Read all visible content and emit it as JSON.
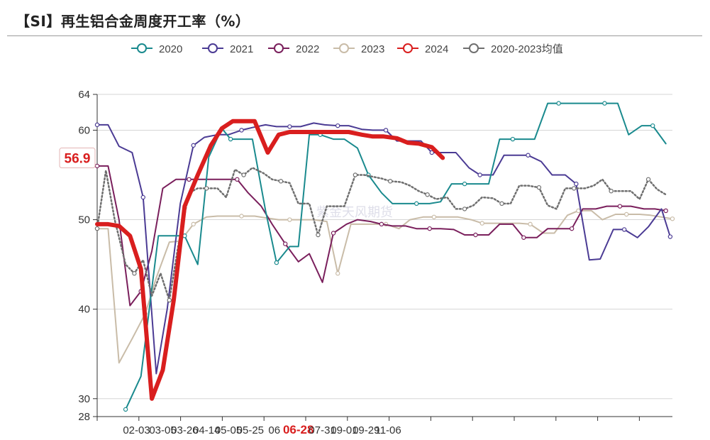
{
  "title": "【SI】再生铝合金周度开工率（%）",
  "watermark": "紫金天风期货",
  "chart_data": {
    "type": "line",
    "title": "【SI】再生铝合金周度开工率（%）",
    "xlabel": "",
    "ylabel": "",
    "ylim": [
      28,
      64
    ],
    "y_ticks": [
      28,
      30,
      40,
      50,
      60,
      64
    ],
    "x_tick_labels": [
      "02-03",
      "03-05",
      "03-26",
      "04-14",
      "05-05",
      "05-25",
      "06",
      "06-28",
      "07-31",
      "09-01",
      "09-29",
      "11-06"
    ],
    "highlight_x_label": "06-28",
    "current_value_label": "56.9",
    "legend_position": "top-center",
    "grid": "horizontal",
    "series": [
      {
        "name": "2020",
        "color": "#1a8a8e",
        "style": "solid",
        "x": [
          13,
          20,
          28,
          35,
          40,
          46,
          51,
          57,
          61,
          66,
          71,
          77,
          82,
          88,
          92,
          97,
          102,
          108,
          113,
          119,
          124,
          130,
          135,
          141,
          146,
          152,
          157,
          162,
          168,
          173,
          179,
          184,
          190,
          195,
          200,
          206,
          211,
          216,
          222,
          227,
          232,
          238,
          243,
          249,
          254,
          260
        ],
        "values": [
          28.8,
          32.5,
          48.2,
          48.2,
          48.2,
          45,
          57,
          60.2,
          59,
          59,
          59,
          51,
          45.2,
          47,
          47,
          59.5,
          59.5,
          59,
          59,
          58,
          55,
          53,
          51.8,
          51.8,
          51.8,
          51.8,
          52,
          54,
          54,
          54,
          54,
          59,
          59,
          59,
          59,
          63,
          63,
          63,
          63,
          63,
          63,
          63,
          59.5,
          60.5,
          60.5,
          58.5
        ]
      },
      {
        "name": "2021",
        "color": "#4b3b94",
        "style": "solid",
        "x": [
          0,
          5,
          10,
          16,
          21,
          27,
          32,
          38,
          44,
          49,
          55,
          60,
          66,
          71,
          77,
          82,
          88,
          93,
          99,
          104,
          110,
          115,
          121,
          126,
          132,
          137,
          142,
          148,
          153,
          159,
          164,
          170,
          175,
          181,
          186,
          192,
          197,
          203,
          208,
          214,
          219,
          225,
          230,
          236,
          241,
          247,
          252,
          258,
          262
        ],
        "values": [
          60.6,
          60.6,
          58.2,
          57.5,
          52.5,
          32.8,
          40,
          51.8,
          58.3,
          59.2,
          59.5,
          59.5,
          60,
          60.3,
          60.6,
          60.4,
          60.4,
          60.4,
          60.8,
          60.6,
          60.5,
          60.5,
          60.1,
          60,
          60,
          58.8,
          58.8,
          58.8,
          57.5,
          57.5,
          57.5,
          55.8,
          55,
          55,
          57.2,
          57.2,
          57.2,
          56.5,
          55,
          55,
          54,
          45.5,
          45.6,
          48.9,
          48.9,
          48,
          49.2,
          51.2,
          48.1
        ]
      },
      {
        "name": "2022",
        "color": "#7a1f5c",
        "style": "solid",
        "x": [
          0,
          5,
          10,
          15,
          20,
          25,
          30,
          36,
          42,
          48,
          53,
          58,
          64,
          69,
          75,
          80,
          86,
          92,
          97,
          103,
          108,
          114,
          119,
          125,
          130,
          135,
          141,
          146,
          152,
          157,
          163,
          168,
          173,
          179,
          184,
          190,
          195,
          201,
          206,
          212,
          217,
          222,
          228,
          233,
          239,
          244,
          250,
          255,
          260
        ],
        "values": [
          56,
          56,
          50,
          40.4,
          42,
          46.5,
          53.5,
          54.5,
          54.5,
          54.5,
          54.5,
          54.5,
          54.5,
          53,
          51.5,
          49.5,
          47.3,
          45.3,
          46.2,
          43,
          48.5,
          49.5,
          50,
          49.8,
          49.5,
          49.3,
          49.3,
          49,
          49,
          49,
          48.9,
          48.3,
          48.3,
          48.3,
          49.5,
          49.5,
          48,
          48,
          49,
          49,
          49,
          51.2,
          51.2,
          51.5,
          51.5,
          51.5,
          51.2,
          51.2,
          51
        ]
      },
      {
        "name": "2023",
        "color": "#c9bca8",
        "style": "solid",
        "x": [
          0,
          5,
          10,
          16,
          22,
          27,
          33,
          38,
          44,
          50,
          55,
          61,
          66,
          72,
          77,
          83,
          88,
          94,
          99,
          105,
          110,
          116,
          121,
          127,
          132,
          138,
          143,
          149,
          154,
          160,
          165,
          171,
          176,
          182,
          187,
          193,
          198,
          204,
          209,
          215,
          220,
          226,
          231,
          237,
          242,
          248,
          253,
          258,
          263
        ],
        "values": [
          49,
          49,
          34,
          36.7,
          39.5,
          43.5,
          47.5,
          47.6,
          49.5,
          50.3,
          50.4,
          50.4,
          50.4,
          50.4,
          50.2,
          50,
          50,
          50,
          50,
          49.8,
          44,
          49.5,
          49.5,
          49.5,
          49.5,
          49,
          50,
          50.3,
          50.3,
          50.3,
          50.3,
          50,
          49.6,
          49.6,
          49.6,
          49.6,
          49.5,
          48.5,
          48.5,
          50.5,
          51,
          51,
          50,
          50.6,
          50.6,
          50.6,
          50.5,
          50.3,
          50.1
        ]
      },
      {
        "name": "2024",
        "color": "#d91e1e",
        "style": "bold",
        "x": [
          0,
          5,
          10,
          15,
          20,
          25,
          30,
          35,
          40,
          46,
          52,
          57,
          62,
          67,
          72,
          78,
          83,
          88,
          94,
          99,
          104,
          110,
          115,
          121,
          126,
          131,
          137,
          142,
          147,
          153,
          158
        ],
        "values": [
          49.5,
          49.5,
          49.3,
          48.2,
          44.5,
          30,
          33.2,
          41,
          51.5,
          55,
          58.3,
          60.2,
          61,
          61,
          61,
          57.5,
          59.5,
          59.8,
          59.8,
          59.8,
          59.8,
          59.8,
          59.8,
          59.5,
          59.3,
          59.3,
          59.1,
          58.6,
          58.5,
          58.1,
          56.9
        ]
      },
      {
        "name": "2020-2023均值",
        "color": "#6f6f6f",
        "style": "dotted",
        "x": [
          0,
          4,
          8,
          13,
          17,
          21,
          25,
          29,
          33,
          37,
          42,
          46,
          50,
          55,
          59,
          63,
          67,
          71,
          76,
          80,
          84,
          88,
          92,
          97,
          101,
          105,
          109,
          113,
          118,
          122,
          126,
          130,
          134,
          139,
          143,
          147,
          151,
          155,
          160,
          164,
          168,
          172,
          176,
          181,
          185,
          189,
          193,
          197,
          202,
          206,
          210,
          214,
          218,
          223,
          227,
          231,
          235,
          239,
          244,
          248,
          252,
          256,
          260
        ],
        "values": [
          49,
          55.5,
          50,
          45,
          44,
          45.5,
          41.5,
          44,
          41,
          47,
          53,
          53.5,
          53.5,
          53.5,
          52.5,
          55.6,
          55,
          55.8,
          55.2,
          54.5,
          54.3,
          54.1,
          51.8,
          51.8,
          48.3,
          51.5,
          51.5,
          51.5,
          55,
          55,
          54.8,
          54.6,
          54.3,
          54.2,
          53.8,
          53.2,
          52.8,
          52.3,
          52.5,
          51.2,
          51.2,
          51.6,
          52.5,
          52.4,
          51.8,
          51.8,
          53.8,
          53.8,
          53.6,
          51.6,
          51.2,
          53.5,
          53.5,
          53.5,
          53.8,
          54.5,
          53.2,
          53.2,
          53.2,
          52.3,
          54.5,
          53.4,
          52.8
        ]
      }
    ]
  }
}
